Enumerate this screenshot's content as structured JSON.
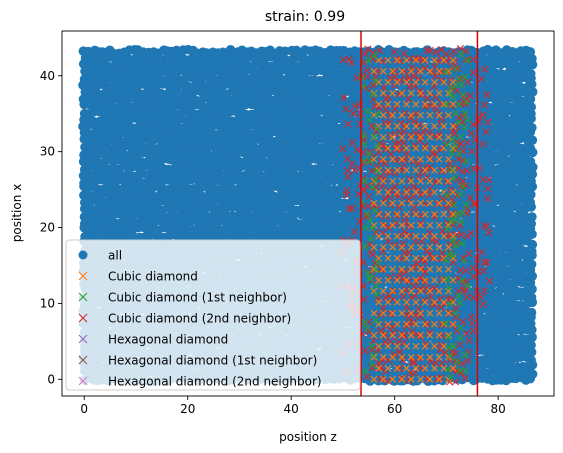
{
  "chart_data": {
    "type": "scatter",
    "title": "strain: 0.99",
    "xlabel": "position z",
    "ylabel": "position x",
    "xlim": [
      -4.3,
      90.8
    ],
    "ylim": [
      -2.2,
      45.9
    ],
    "xticks": [
      0,
      20,
      40,
      60,
      80
    ],
    "yticks": [
      0,
      10,
      20,
      30,
      40
    ],
    "grid": false,
    "legend_position": "lower left",
    "vertical_lines": {
      "x": [
        53.5,
        76.0
      ],
      "color": "#e00000"
    },
    "data_extent": {
      "z": [
        0,
        86.5
      ],
      "x": [
        0,
        43.5
      ]
    },
    "series": [
      {
        "name": "all",
        "marker": "o",
        "color": "#1f77b4",
        "z_range": [
          0,
          86.5
        ],
        "x_range": [
          0,
          43.5
        ]
      },
      {
        "name": "Cubic diamond",
        "marker": "x",
        "color": "#ff7f0e",
        "z_range": [
          56,
          72
        ],
        "x_range": [
          0,
          43.5
        ]
      },
      {
        "name": "Cubic diamond (1st neighbor)",
        "marker": "x",
        "color": "#2ca02c",
        "z_range": [
          54,
          75
        ],
        "x_range": [
          0,
          43.5
        ]
      },
      {
        "name": "Cubic diamond (2nd neighbor)",
        "marker": "x",
        "color": "#d62728",
        "z_range": [
          50,
          78
        ],
        "x_range": [
          0,
          43.5
        ]
      },
      {
        "name": "Hexagonal diamond",
        "marker": "x",
        "color": "#9467bd",
        "z_range": [],
        "x_range": []
      },
      {
        "name": "Hexagonal diamond (1st neighbor)",
        "marker": "x",
        "color": "#8c564b",
        "z_range": [],
        "x_range": []
      },
      {
        "name": "Hexagonal diamond (2nd neighbor)",
        "marker": "x",
        "color": "#e377c2",
        "z_range": [],
        "x_range": []
      }
    ]
  }
}
